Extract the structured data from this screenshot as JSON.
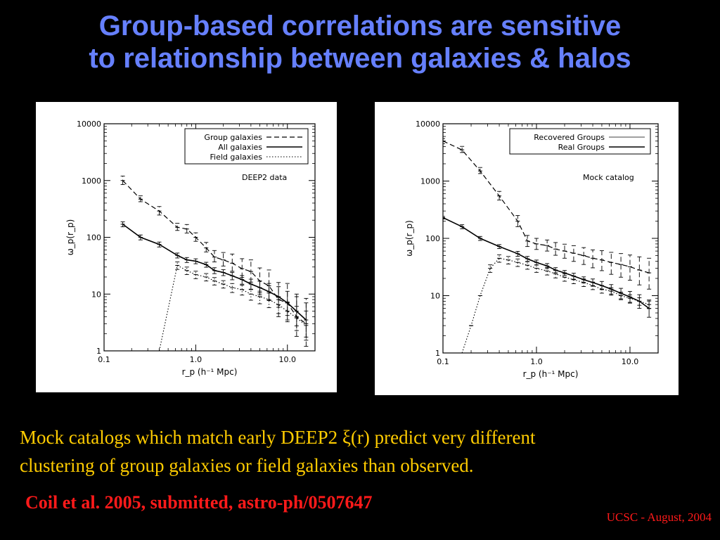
{
  "slide": {
    "title_line1": "Group-based correlations are sensitive",
    "title_line2": "to relationship between galaxies & halos",
    "body_line1": "Mock catalogs which match early DEEP2 ξ(r) predict very different",
    "body_line2": "clustering of group galaxies or field galaxies than observed.",
    "citation": "Coil et al. 2005, submitted, astro-ph/0507647",
    "footer": "UCSC - August, 2004"
  },
  "colors": {
    "background": "#000000",
    "title": "#6680ff",
    "body_text": "#ffcc00",
    "citation": "#ff1a1a",
    "plot_bg": "#ffffff",
    "plot_ink": "#000000"
  },
  "chart_data": [
    {
      "type": "line",
      "annotation": "DEEP2 data",
      "xlabel": "r_p (h⁻¹ Mpc)",
      "ylabel": "ω_p(r_p)",
      "x_scale": "log",
      "y_scale": "log",
      "xlim": [
        0.1,
        20
      ],
      "ylim": [
        1,
        10000
      ],
      "xticks": [
        0.1,
        1.0,
        10.0
      ],
      "xtick_labels": [
        "0.1",
        "1.0",
        "10.0"
      ],
      "yticks": [
        1,
        10,
        100,
        1000,
        10000
      ],
      "ytick_labels": [
        "1",
        "10",
        "100",
        "1000",
        "10000"
      ],
      "legend_position": "top-right",
      "series": [
        {
          "name": "Group galaxies",
          "style": "dashed",
          "x": [
            0.16,
            0.25,
            0.4,
            0.63,
            0.8,
            1.0,
            1.3,
            1.6,
            2.0,
            2.5,
            3.2,
            4.0,
            5.0,
            6.3,
            8.0,
            10.0,
            12.6,
            16.0
          ],
          "y": [
            1000,
            470,
            290,
            150,
            140,
            100,
            65,
            45,
            40,
            35,
            28,
            25,
            17,
            14,
            8,
            7,
            4,
            3
          ],
          "err_lo": [
            0.85,
            0.9,
            0.85,
            0.88,
            0.85,
            0.85,
            0.85,
            0.82,
            0.78,
            0.72,
            0.7,
            0.65,
            0.62,
            0.55,
            0.5,
            0.5,
            0.45,
            0.4
          ],
          "err_hi": [
            1.2,
            1.15,
            1.2,
            1.18,
            1.2,
            1.2,
            1.25,
            1.3,
            1.35,
            1.45,
            1.5,
            1.6,
            1.7,
            1.9,
            2.0,
            2.2,
            2.5,
            2.8
          ]
        },
        {
          "name": "All galaxies",
          "style": "solid",
          "x": [
            0.16,
            0.25,
            0.4,
            0.63,
            0.8,
            1.0,
            1.3,
            1.6,
            2.0,
            2.5,
            3.2,
            4.0,
            5.0,
            6.3,
            8.0,
            10.0,
            12.6,
            16.0
          ],
          "y": [
            170,
            100,
            75,
            48,
            40,
            38,
            33,
            26,
            24,
            21,
            18,
            15,
            13,
            11,
            9,
            7,
            5,
            3.5
          ],
          "err_lo": [
            0.9,
            0.9,
            0.9,
            0.9,
            0.9,
            0.9,
            0.9,
            0.88,
            0.88,
            0.85,
            0.83,
            0.8,
            0.75,
            0.7,
            0.65,
            0.6,
            0.55,
            0.5
          ],
          "err_hi": [
            1.1,
            1.1,
            1.1,
            1.1,
            1.1,
            1.1,
            1.1,
            1.12,
            1.12,
            1.15,
            1.18,
            1.22,
            1.3,
            1.4,
            1.5,
            1.6,
            1.8,
            2.0
          ]
        },
        {
          "name": "Field galaxies",
          "style": "dotted",
          "x": [
            0.16,
            0.25,
            0.4,
            0.63,
            0.8,
            1.0,
            1.3,
            1.6,
            2.0,
            2.5,
            3.2,
            4.0,
            5.0,
            6.3,
            8.0,
            10.0,
            12.6,
            16.0
          ],
          "y": [
            1,
            1,
            1,
            32,
            26,
            22,
            20,
            17,
            15,
            13,
            12,
            10,
            9,
            8,
            6.5,
            5,
            3.8,
            2.8
          ],
          "err_lo": [
            1,
            1,
            1,
            0.85,
            0.85,
            0.85,
            0.85,
            0.85,
            0.85,
            0.82,
            0.8,
            0.78,
            0.75,
            0.72,
            0.7,
            0.65,
            0.6,
            0.55
          ],
          "err_hi": [
            1,
            1,
            1,
            1.15,
            1.15,
            1.15,
            1.15,
            1.15,
            1.15,
            1.18,
            1.2,
            1.22,
            1.25,
            1.3,
            1.35,
            1.45,
            1.6,
            1.8
          ]
        }
      ]
    },
    {
      "type": "line",
      "annotation": "Mock catalog",
      "xlabel": "r_p (h⁻¹ Mpc)",
      "ylabel": "ω_p(r_p)",
      "x_scale": "log",
      "y_scale": "log",
      "xlim": [
        0.1,
        20
      ],
      "ylim": [
        1,
        10000
      ],
      "xticks": [
        0.1,
        1.0,
        10.0
      ],
      "xtick_labels": [
        "0.1",
        "1.0",
        "10.0"
      ],
      "yticks": [
        1,
        10,
        100,
        1000,
        10000
      ],
      "ytick_labels": [
        "1",
        "10",
        "100",
        "1000",
        "10000"
      ],
      "legend_position": "top-right",
      "series": [
        {
          "name": "Recovered Groups",
          "style": "thin-solid",
          "groups": [
            {
              "style": "dashed",
              "x": [
                0.1,
                0.16,
                0.25,
                0.4,
                0.63,
                0.8,
                1.0,
                1.3,
                1.6,
                2.0,
                2.5,
                3.2,
                4.0,
                5.0,
                6.3,
                8.0,
                10.0,
                12.6,
                16.0
              ],
              "y": [
                5000,
                3500,
                1500,
                550,
                200,
                90,
                80,
                75,
                65,
                60,
                55,
                50,
                45,
                42,
                38,
                35,
                32,
                28,
                25
              ],
              "err_lo": [
                0.9,
                0.9,
                0.9,
                0.85,
                0.8,
                0.8,
                0.8,
                0.8,
                0.78,
                0.75,
                0.72,
                0.7,
                0.68,
                0.65,
                0.62,
                0.6,
                0.58,
                0.55,
                0.52
              ],
              "err_hi": [
                1.1,
                1.15,
                1.15,
                1.2,
                1.25,
                1.25,
                1.25,
                1.25,
                1.3,
                1.32,
                1.35,
                1.38,
                1.4,
                1.45,
                1.5,
                1.55,
                1.6,
                1.7,
                1.8
              ]
            },
            {
              "style": "dotted",
              "x": [
                0.16,
                0.2,
                0.25,
                0.32,
                0.4,
                0.5,
                0.63,
                0.8,
                1.0,
                1.3,
                1.6,
                2.0,
                2.5,
                3.2,
                4.0,
                5.0,
                6.3,
                8.0,
                10.0,
                12.6,
                16.0
              ],
              "y": [
                1,
                3,
                10,
                30,
                45,
                42,
                38,
                34,
                30,
                27,
                24,
                21,
                19,
                17,
                15,
                13,
                12,
                10,
                9,
                8,
                7
              ],
              "err_lo": [
                1,
                1,
                1,
                0.85,
                0.85,
                0.85,
                0.85,
                0.85,
                0.85,
                0.85,
                0.85,
                0.85,
                0.85,
                0.85,
                0.85,
                0.85,
                0.85,
                0.85,
                0.85,
                0.85,
                0.85
              ],
              "err_hi": [
                1,
                1,
                1,
                1.15,
                1.15,
                1.15,
                1.15,
                1.15,
                1.15,
                1.15,
                1.15,
                1.15,
                1.15,
                1.15,
                1.15,
                1.15,
                1.15,
                1.15,
                1.15,
                1.15,
                1.15
              ]
            }
          ]
        },
        {
          "name": "Real Groups",
          "style": "solid",
          "x": [
            0.1,
            0.16,
            0.25,
            0.4,
            0.63,
            0.8,
            1.0,
            1.3,
            1.6,
            2.0,
            2.5,
            3.2,
            4.0,
            5.0,
            6.3,
            8.0,
            10.0,
            12.6,
            16.0
          ],
          "y": [
            230,
            160,
            100,
            72,
            54,
            44,
            38,
            33,
            28,
            25,
            22,
            19,
            17,
            15,
            13,
            11,
            9.5,
            8,
            6
          ],
          "err_lo": [
            0.95,
            0.92,
            0.92,
            0.92,
            0.9,
            0.9,
            0.9,
            0.9,
            0.9,
            0.9,
            0.88,
            0.88,
            0.86,
            0.85,
            0.82,
            0.8,
            0.78,
            0.75,
            0.7
          ],
          "err_hi": [
            1.05,
            1.08,
            1.08,
            1.08,
            1.1,
            1.1,
            1.1,
            1.1,
            1.1,
            1.1,
            1.12,
            1.12,
            1.15,
            1.18,
            1.2,
            1.22,
            1.25,
            1.3,
            1.4
          ]
        }
      ]
    }
  ]
}
